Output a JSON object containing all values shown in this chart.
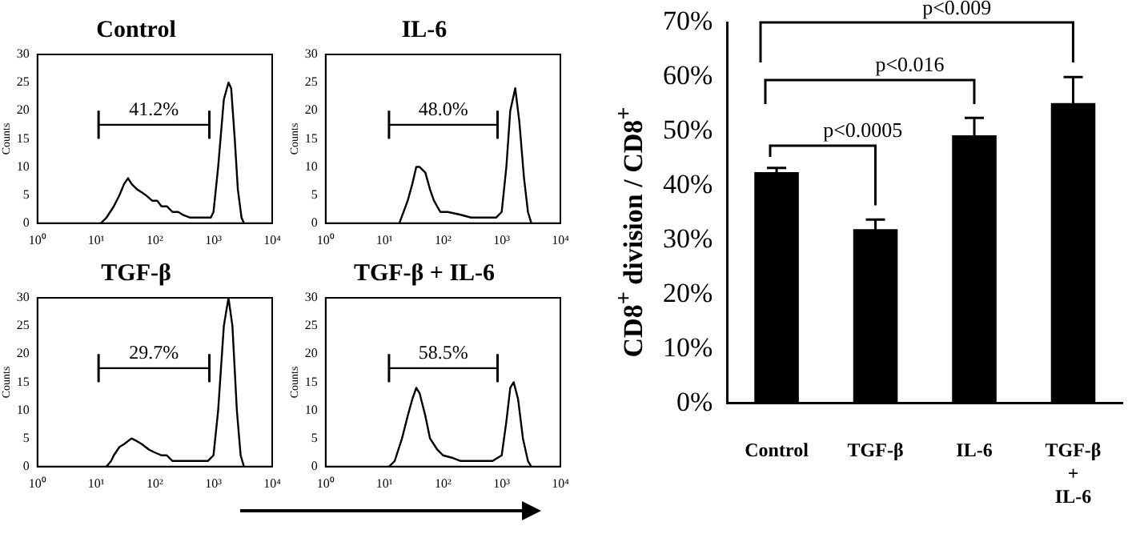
{
  "chart_data": [
    {
      "type": "line",
      "title": "Control",
      "ylabel": "Counts",
      "log": "x",
      "x": [
        12,
        15,
        20,
        25,
        30,
        35,
        40,
        50,
        60,
        70,
        90,
        110,
        130,
        160,
        200,
        250,
        300,
        400,
        500,
        700,
        900,
        1000,
        1200,
        1500,
        1800,
        2000,
        2300,
        2600,
        3000,
        3300
      ],
      "series": [
        {
          "color": "#000000",
          "values": [
            0,
            1,
            3,
            5,
            7,
            8,
            7,
            6,
            5.5,
            5,
            4,
            4,
            3,
            3,
            2,
            2,
            1.5,
            1,
            1,
            1,
            1,
            2,
            10,
            22,
            25,
            24,
            15,
            6,
            1,
            0
          ]
        },
        {
          "color": "#000000",
          "x": [
            11,
            850
          ],
          "values": [
            17.5,
            17.5
          ],
          "errors": [
            2.5,
            2.5
          ]
        }
      ],
      "xlim": [
        1,
        10000
      ],
      "xticks": [
        {
          "value": 1,
          "label": "10⁰"
        },
        {
          "value": 10,
          "label": "10¹"
        },
        {
          "value": 100,
          "label": "10²"
        },
        {
          "value": 1000,
          "label": "10³"
        },
        {
          "value": 10000,
          "label": "10⁴"
        }
      ],
      "ylim": [
        0,
        30
      ],
      "yticks": [
        0,
        5,
        10,
        15,
        20,
        25,
        30
      ],
      "annotations": [
        "41.2%"
      ],
      "marker": "none"
    },
    {
      "type": "line",
      "title": "IL-6",
      "ylabel": "Counts",
      "log": "x",
      "x": [
        18,
        25,
        30,
        35,
        40,
        50,
        60,
        70,
        90,
        120,
        200,
        300,
        500,
        800,
        1000,
        1200,
        1400,
        1700,
        2000,
        2400,
        2800,
        3200
      ],
      "series": [
        {
          "color": "#000000",
          "values": [
            0,
            4,
            7,
            10,
            10,
            9,
            6,
            4,
            2,
            2,
            1.5,
            1,
            1,
            1,
            2,
            10,
            20,
            24,
            18,
            8,
            2,
            0
          ]
        },
        {
          "color": "#000000",
          "x": [
            12,
            850
          ],
          "values": [
            17.5,
            17.5
          ],
          "errors": [
            2.5,
            2.5
          ]
        }
      ],
      "xlim": [
        1,
        10000
      ],
      "xticks": [
        {
          "value": 1,
          "label": "10⁰"
        },
        {
          "value": 10,
          "label": "10¹"
        },
        {
          "value": 100,
          "label": "10²"
        },
        {
          "value": 1000,
          "label": "10³"
        },
        {
          "value": 10000,
          "label": "10⁴"
        }
      ],
      "ylim": [
        0,
        30
      ],
      "yticks": [
        0,
        5,
        10,
        15,
        20,
        25,
        30
      ],
      "annotations": [
        "48.0%"
      ],
      "marker": "none"
    },
    {
      "type": "line",
      "title": "TGF-β",
      "ylabel": "Counts",
      "log": "x",
      "x": [
        15,
        18,
        20,
        25,
        30,
        40,
        50,
        60,
        80,
        100,
        130,
        160,
        200,
        300,
        500,
        800,
        1000,
        1200,
        1500,
        1800,
        2100,
        2500,
        2900,
        3300
      ],
      "series": [
        {
          "color": "#000000",
          "values": [
            0,
            1,
            2,
            3.5,
            4,
            5,
            4.5,
            4,
            3,
            2.5,
            2,
            2,
            1,
            1,
            1,
            1,
            2,
            10,
            25,
            30,
            25,
            10,
            2,
            0
          ]
        },
        {
          "color": "#000000",
          "x": [
            11,
            850
          ],
          "values": [
            17.5,
            17.5
          ],
          "errors": [
            2.5,
            2.5
          ]
        }
      ],
      "xlim": [
        1,
        10000
      ],
      "xticks": [
        {
          "value": 1,
          "label": "10⁰"
        },
        {
          "value": 10,
          "label": "10¹"
        },
        {
          "value": 100,
          "label": "10²"
        },
        {
          "value": 1000,
          "label": "10³"
        },
        {
          "value": 10000,
          "label": "10⁴"
        }
      ],
      "ylim": [
        0,
        30
      ],
      "yticks": [
        0,
        5,
        10,
        15,
        20,
        25,
        30
      ],
      "annotations": [
        "29.7%"
      ],
      "marker": "none"
    },
    {
      "type": "line",
      "title": "TGF-β + IL-6",
      "ylabel": "Counts",
      "log": "x",
      "x": [
        12,
        15,
        20,
        25,
        30,
        35,
        40,
        50,
        60,
        80,
        100,
        150,
        200,
        400,
        700,
        1000,
        1200,
        1400,
        1600,
        1900,
        2300,
        2800,
        3200
      ],
      "series": [
        {
          "color": "#000000",
          "values": [
            0,
            1,
            5,
            9,
            12,
            14,
            13,
            9,
            5,
            3,
            2,
            1.5,
            1,
            1,
            1,
            2,
            8,
            14,
            15,
            12,
            5,
            1,
            0
          ]
        },
        {
          "color": "#000000",
          "x": [
            12,
            850
          ],
          "values": [
            17.5,
            17.5
          ],
          "errors": [
            2.5,
            2.5
          ]
        }
      ],
      "xlim": [
        1,
        10000
      ],
      "xticks": [
        {
          "value": 1,
          "label": "10⁰"
        },
        {
          "value": 10,
          "label": "10¹"
        },
        {
          "value": 100,
          "label": "10²"
        },
        {
          "value": 1000,
          "label": "10³"
        },
        {
          "value": 10000,
          "label": "10⁴"
        }
      ],
      "ylim": [
        0,
        30
      ],
      "yticks": [
        0,
        5,
        10,
        15,
        20,
        25,
        30
      ],
      "annotations": [
        "58.5%"
      ],
      "marker": "none"
    },
    {
      "type": "bar",
      "ylabel": "CD8$^{+}$ division / CD8$^{+}$",
      "categories": [
        "Control",
        "TGF-β",
        "IL-6",
        "TGF-β\n+\nIL-6"
      ],
      "values": [
        42.5,
        32,
        49.3,
        55.2
      ],
      "errors": [
        0.8,
        1.8,
        3.2,
        4.8
      ],
      "color": "#000000",
      "ylim": [
        0,
        70
      ],
      "yticks": [
        {
          "value": 0,
          "label": "0%"
        },
        {
          "value": 10,
          "label": "10%"
        },
        {
          "value": 20,
          "label": "20%"
        },
        {
          "value": 30,
          "label": "30%"
        },
        {
          "value": 40,
          "label": "40%"
        },
        {
          "value": 50,
          "label": "50%"
        },
        {
          "value": 60,
          "label": "60%"
        },
        {
          "value": 70,
          "label": "70%"
        }
      ],
      "annotations": [
        "p<0.0005",
        "p<0.016",
        "p<0.009"
      ]
    }
  ]
}
